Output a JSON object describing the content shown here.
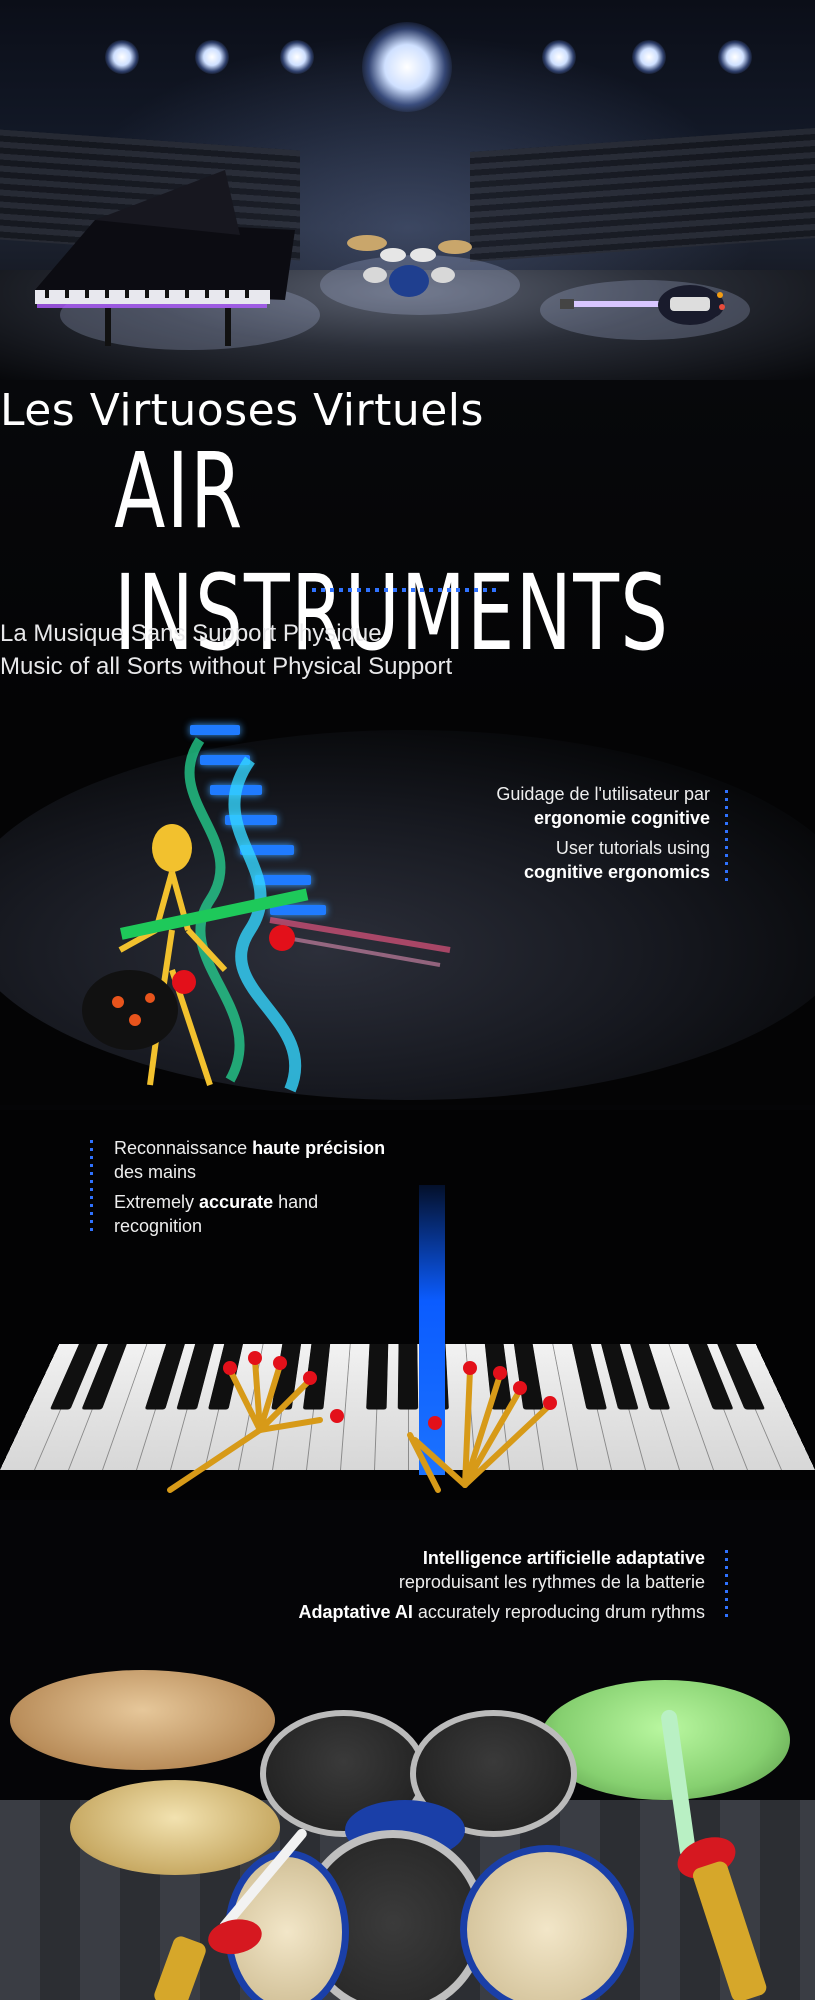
{
  "header": {
    "subtitle": "Les Virtuoses Virtuels",
    "title": "AIR INSTRUMENTS",
    "tagline_fr": "La Musique Sans Support Physique",
    "tagline_en": "Music of all Sorts without Physical Support"
  },
  "features": [
    {
      "fr_prefix": "Guidage de l'utilisateur par",
      "fr_bold": "ergonomie cognitive",
      "en_prefix": "User tutorials using",
      "en_bold": "cognitive ergonomics"
    },
    {
      "fr_prefix": "Reconnaissance",
      "fr_bold": "haute précision",
      "fr_suffix": "des mains",
      "en_prefix": "Extremely",
      "en_bold": "accurate",
      "en_suffix": "hand recognition"
    },
    {
      "fr_bold": "Intelligence artificielle adaptative",
      "fr_suffix": "reproduisant les rythmes de la batterie",
      "en_bold": "Adaptative AI",
      "en_suffix": "accurately reproducing drum rythms"
    }
  ],
  "colors": {
    "accent_blue": "#2f72ff",
    "background": "#050507",
    "text": "#ffffff"
  },
  "icons": [
    "stage-spotlight",
    "piano",
    "drum-kit",
    "electric-guitar",
    "guitarist-avatar",
    "piano-keyboard",
    "robot-hands",
    "drum-set",
    "drumsticks"
  ]
}
